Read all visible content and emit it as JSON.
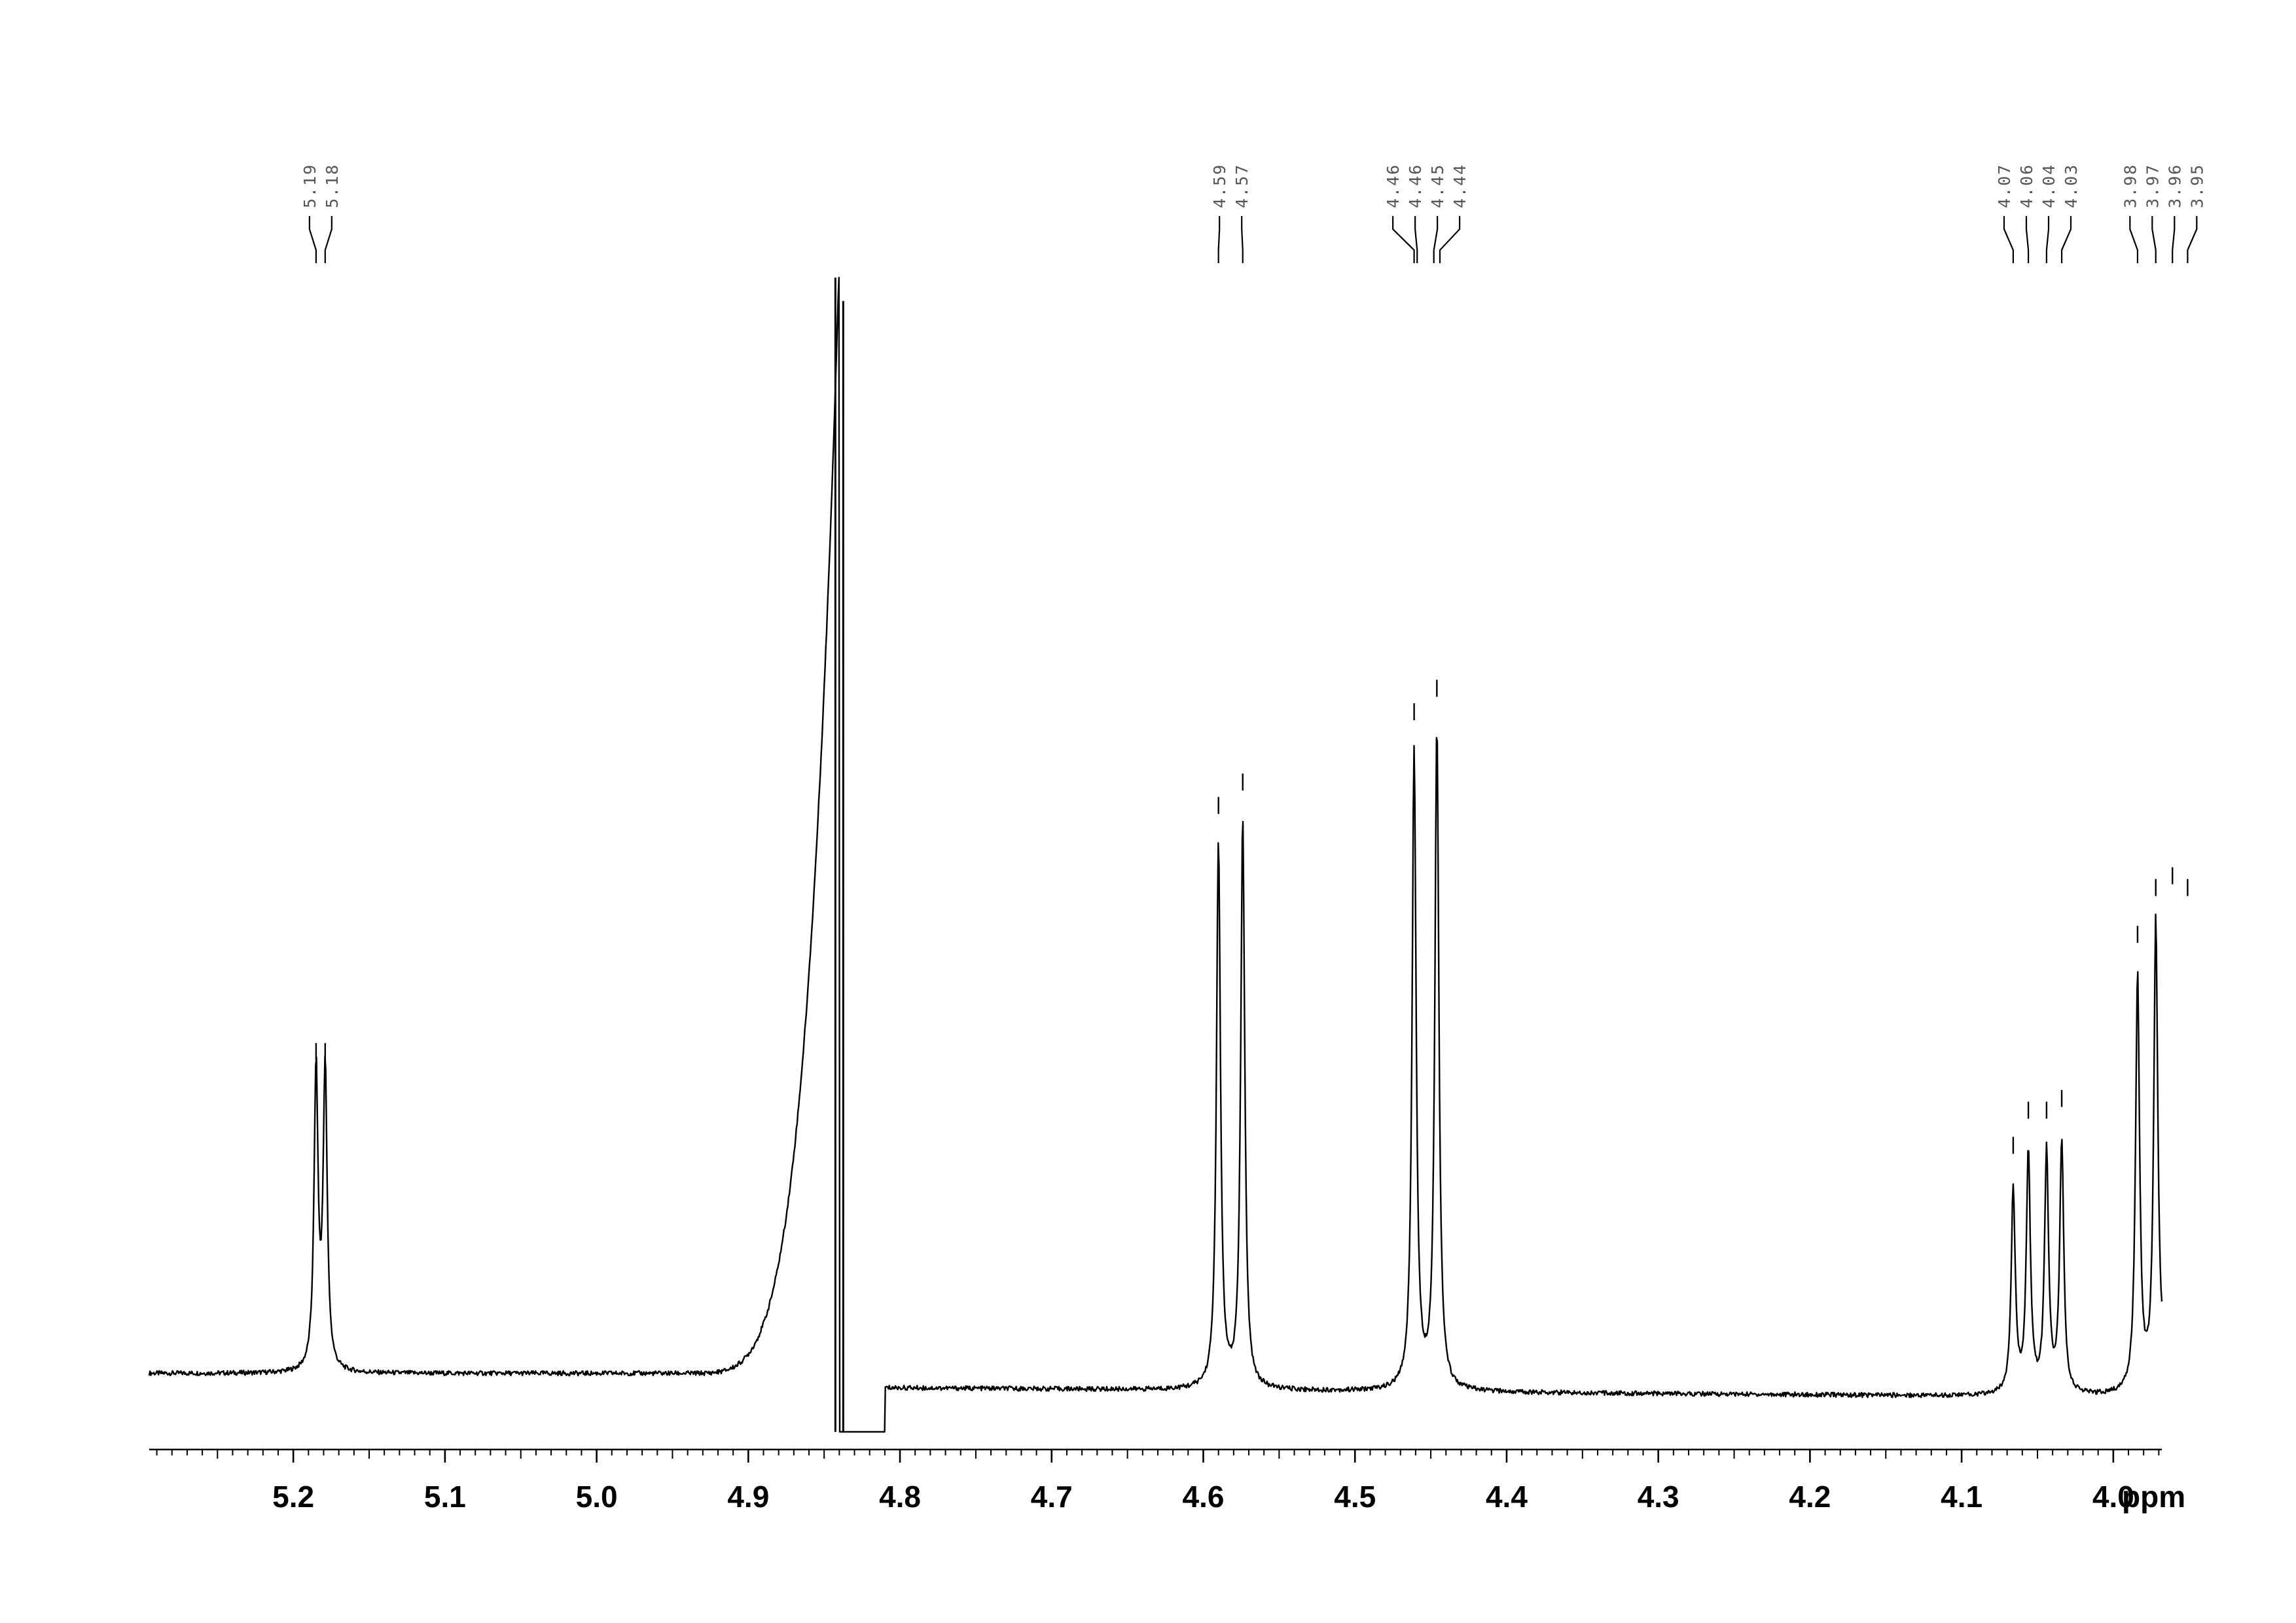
{
  "chart_data": {
    "type": "line",
    "title": "",
    "xlabel": "ppm",
    "ylabel": "",
    "x_reversed": true,
    "xlim": [
      5.295,
      3.968
    ],
    "ylim": [
      0,
      1
    ],
    "grid": false,
    "legend": "none",
    "x_ticks": [
      {
        "value": 5.2,
        "label": "5.2"
      },
      {
        "value": 5.1,
        "label": "5.1"
      },
      {
        "value": 5.0,
        "label": "5.0"
      },
      {
        "value": 4.9,
        "label": "4.9"
      },
      {
        "value": 4.8,
        "label": "4.8"
      },
      {
        "value": 4.7,
        "label": "4.7"
      },
      {
        "value": 4.6,
        "label": "4.6"
      },
      {
        "value": 4.5,
        "label": "4.5"
      },
      {
        "value": 4.4,
        "label": "4.4"
      },
      {
        "value": 4.3,
        "label": "4.3"
      },
      {
        "value": 4.2,
        "label": "4.2"
      },
      {
        "value": 4.1,
        "label": "4.1"
      },
      {
        "value": 4.0,
        "label": "4.0"
      }
    ],
    "minor_tick_step": 0.01,
    "baseline": 0.065,
    "peaks": [
      {
        "ppm": 5.185,
        "height": 0.32
      },
      {
        "ppm": 5.179,
        "height": 0.32
      },
      {
        "ppm": 4.84,
        "height": 1.0
      },
      {
        "ppm": 4.59,
        "height": 0.53
      },
      {
        "ppm": 4.574,
        "height": 0.55
      },
      {
        "ppm": 4.461,
        "height": 0.61
      },
      {
        "ppm": 4.446,
        "height": 0.63
      },
      {
        "ppm": 4.066,
        "height": 0.24
      },
      {
        "ppm": 4.056,
        "height": 0.27
      },
      {
        "ppm": 4.044,
        "height": 0.27
      },
      {
        "ppm": 4.034,
        "height": 0.28
      },
      {
        "ppm": 3.984,
        "height": 0.42
      },
      {
        "ppm": 3.972,
        "height": 0.46
      },
      {
        "ppm": 3.961,
        "height": 0.47
      },
      {
        "ppm": 3.951,
        "height": 0.46
      }
    ],
    "peak_labels": [
      {
        "group": 1,
        "ppm": 5.185,
        "label": "5.19"
      },
      {
        "group": 1,
        "ppm": 5.179,
        "label": "5.18"
      },
      {
        "group": 2,
        "ppm": 4.59,
        "label": "4.59"
      },
      {
        "group": 2,
        "ppm": 4.574,
        "label": "4.57"
      },
      {
        "group": 3,
        "ppm": 4.461,
        "label": "4.46"
      },
      {
        "group": 3,
        "ppm": 4.459,
        "label": "4.46"
      },
      {
        "group": 3,
        "ppm": 4.448,
        "label": "4.45"
      },
      {
        "group": 3,
        "ppm": 4.444,
        "label": "4.44"
      },
      {
        "group": 4,
        "ppm": 4.066,
        "label": "4.07"
      },
      {
        "group": 4,
        "ppm": 4.056,
        "label": "4.06"
      },
      {
        "group": 4,
        "ppm": 4.044,
        "label": "4.04"
      },
      {
        "group": 4,
        "ppm": 4.034,
        "label": "4.03"
      },
      {
        "group": 5,
        "ppm": 3.984,
        "label": "3.98"
      },
      {
        "group": 5,
        "ppm": 3.972,
        "label": "3.97"
      },
      {
        "group": 5,
        "ppm": 3.961,
        "label": "3.96"
      },
      {
        "group": 5,
        "ppm": 3.951,
        "label": "3.95"
      }
    ],
    "solvent_region": {
      "ppm_start": 4.948,
      "ppm_peak": 4.84,
      "ppm_end": 4.81
    },
    "colors": {
      "trace": "#000000",
      "axis": "#000000",
      "label": "#555555"
    }
  }
}
